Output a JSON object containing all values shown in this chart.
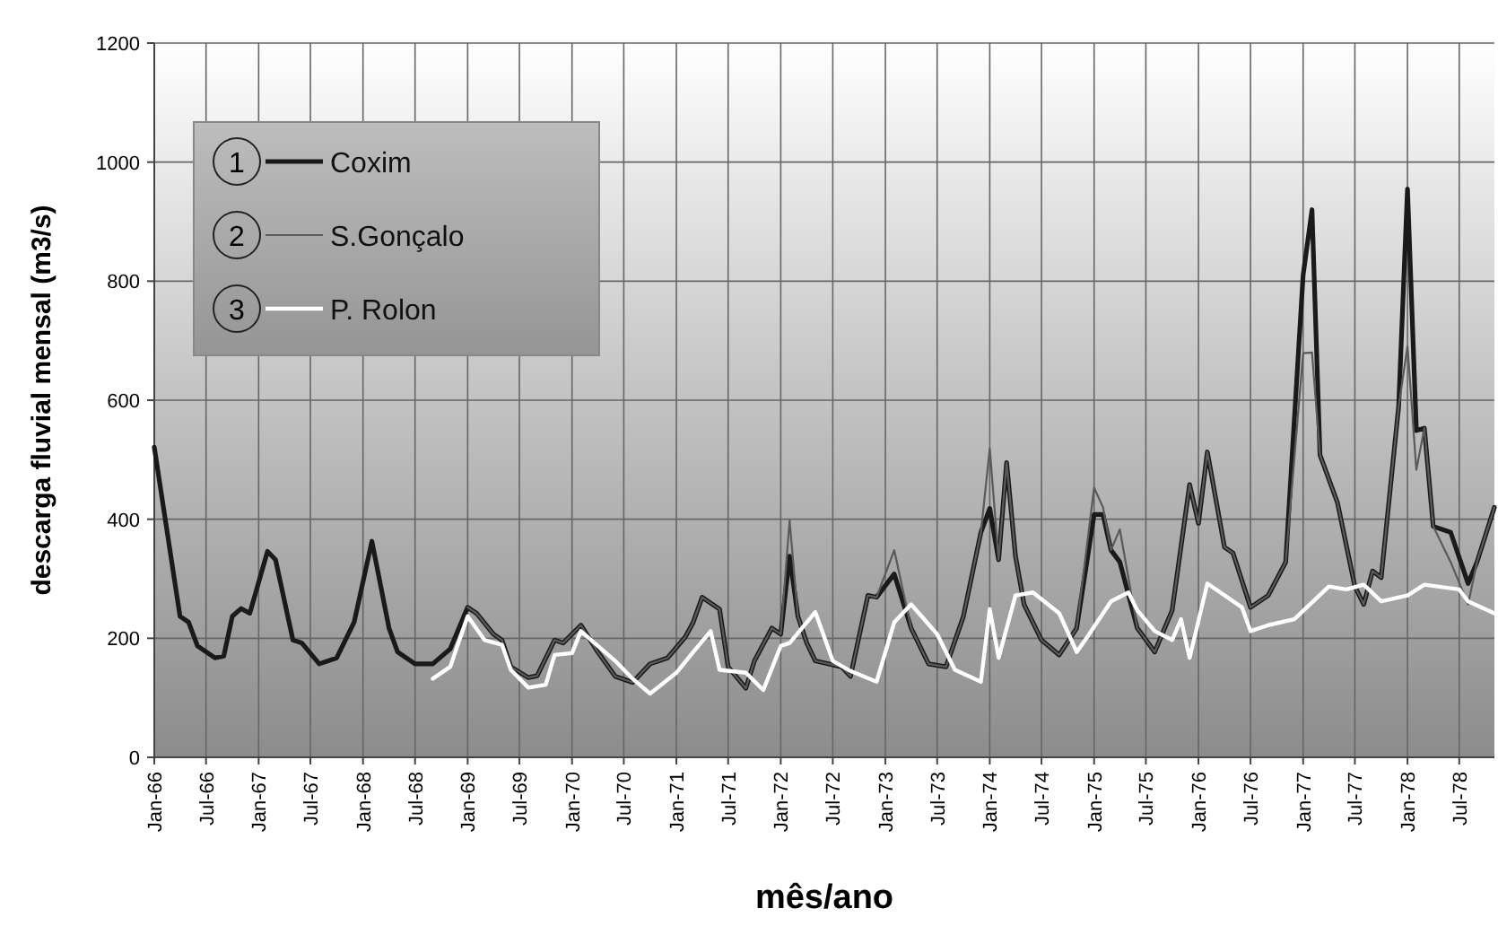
{
  "chart_data": {
    "type": "line",
    "xlabel": "mês/ano",
    "ylabel": "descarga fluvial mensal (m3/s)",
    "xlim": [
      "1966-01",
      "1978-11"
    ],
    "ylim": [
      0,
      1200
    ],
    "yticks": [
      0,
      200,
      400,
      600,
      800,
      1000,
      1200
    ],
    "xticks": [
      {
        "value": "1966-01",
        "label": "Jan-66"
      },
      {
        "value": "1966-07",
        "label": "Jul-66"
      },
      {
        "value": "1967-01",
        "label": "Jan-67"
      },
      {
        "value": "1967-07",
        "label": "Jul-67"
      },
      {
        "value": "1968-01",
        "label": "Jan-68"
      },
      {
        "value": "1968-07",
        "label": "Jul-68"
      },
      {
        "value": "1969-01",
        "label": "Jan-69"
      },
      {
        "value": "1969-07",
        "label": "Jul-69"
      },
      {
        "value": "1970-01",
        "label": "Jan-70"
      },
      {
        "value": "1970-07",
        "label": "Jul-70"
      },
      {
        "value": "1971-01",
        "label": "Jan-71"
      },
      {
        "value": "1971-07",
        "label": "Jul-71"
      },
      {
        "value": "1972-01",
        "label": "Jan-72"
      },
      {
        "value": "1972-07",
        "label": "Jul-72"
      },
      {
        "value": "1973-01",
        "label": "Jan-73"
      },
      {
        "value": "1973-07",
        "label": "Jul-73"
      },
      {
        "value": "1974-01",
        "label": "Jan-74"
      },
      {
        "value": "1974-07",
        "label": "Jul-74"
      },
      {
        "value": "1975-01",
        "label": "Jan-75"
      },
      {
        "value": "1975-07",
        "label": "Jul-75"
      },
      {
        "value": "1976-01",
        "label": "Jan-76"
      },
      {
        "value": "1976-07",
        "label": "Jul-76"
      },
      {
        "value": "1977-01",
        "label": "Jan-77"
      },
      {
        "value": "1977-07",
        "label": "Jul-77"
      },
      {
        "value": "1978-01",
        "label": "Jan-78"
      },
      {
        "value": "1978-07",
        "label": "Jul-78"
      }
    ],
    "grid": true,
    "legend": "top left",
    "line_style": "solid",
    "annotations": [
      "1",
      "2",
      "3"
    ],
    "series": [
      {
        "name": "Coxim",
        "color": "#1a1a1a",
        "x": [
          "1966-01",
          "1966-04",
          "1966-05",
          "1966-06",
          "1966-08",
          "1966-09",
          "1966-10",
          "1966-11",
          "1966-12",
          "1967-02",
          "1967-03",
          "1967-05",
          "1967-06",
          "1967-08",
          "1967-10",
          "1967-12",
          "1968-02",
          "1968-04",
          "1968-05",
          "1968-07",
          "1968-09",
          "1968-11",
          "1969-01",
          "1969-02",
          "1969-04",
          "1969-05",
          "1969-06",
          "1969-08",
          "1969-09",
          "1969-11",
          "1969-12",
          "1970-02",
          "1970-04",
          "1970-06",
          "1970-08",
          "1970-10",
          "1970-12",
          "1971-02",
          "1971-03",
          "1971-04",
          "1971-06",
          "1971-07",
          "1971-09",
          "1971-10",
          "1971-12",
          "1972-01",
          "1972-02",
          "1972-03",
          "1972-04",
          "1972-05",
          "1972-08",
          "1972-09",
          "1972-11",
          "1972-12",
          "1973-02",
          "1973-04",
          "1973-06",
          "1973-08",
          "1973-10",
          "1973-12",
          "1974-01",
          "1974-02",
          "1974-03",
          "1974-04",
          "1974-05",
          "1974-07",
          "1974-09",
          "1974-11",
          "1975-01",
          "1975-02",
          "1975-03",
          "1975-04",
          "1975-06",
          "1975-08",
          "1975-10",
          "1975-12",
          "1976-01",
          "1976-02",
          "1976-04",
          "1976-05",
          "1976-07",
          "1976-09",
          "1976-11",
          "1977-01",
          "1977-02",
          "1977-03",
          "1977-05",
          "1977-07",
          "1977-08",
          "1977-09",
          "1977-10",
          "1977-12",
          "1978-01",
          "1978-02",
          "1978-03",
          "1978-04",
          "1978-06",
          "1978-08",
          "1978-09",
          "1978-11"
        ],
        "values": [
          521,
          237,
          227,
          187,
          167,
          170,
          237,
          250,
          242,
          346,
          332,
          197,
          192,
          157,
          167,
          227,
          363,
          217,
          177,
          157,
          157,
          182,
          252,
          242,
          207,
          197,
          152,
          134,
          137,
          197,
          192,
          222,
          177,
          136,
          126,
          157,
          167,
          202,
          227,
          269,
          249,
          152,
          116,
          162,
          217,
          207,
          338,
          237,
          192,
          162,
          152,
          136,
          272,
          269,
          308,
          217,
          157,
          152,
          237,
          378,
          418,
          332,
          495,
          338,
          257,
          197,
          172,
          217,
          408,
          408,
          348,
          328,
          217,
          177,
          247,
          458,
          393,
          513,
          353,
          343,
          252,
          272,
          328,
          810,
          920,
          508,
          428,
          287,
          257,
          313,
          302,
          589,
          955,
          549,
          553,
          388,
          378,
          292,
          328,
          420
        ]
      },
      {
        "name": "S.Gonçalo",
        "color": "#5a5a5a",
        "x": [
          "1969-01",
          "1969-02",
          "1969-04",
          "1969-05",
          "1969-06",
          "1969-08",
          "1969-09",
          "1969-11",
          "1969-12",
          "1970-02",
          "1970-04",
          "1970-06",
          "1970-08",
          "1970-10",
          "1970-12",
          "1971-02",
          "1971-03",
          "1971-04",
          "1971-06",
          "1971-07",
          "1971-09",
          "1971-10",
          "1971-12",
          "1972-01",
          "1972-02",
          "1972-03",
          "1972-04",
          "1972-05",
          "1972-08",
          "1972-09",
          "1972-11",
          "1972-12",
          "1973-02",
          "1973-04",
          "1973-06",
          "1973-08",
          "1973-10",
          "1973-12",
          "1974-01",
          "1974-02",
          "1974-03",
          "1974-04",
          "1974-05",
          "1974-07",
          "1974-09",
          "1974-11",
          "1975-01",
          "1975-02",
          "1975-03",
          "1975-04",
          "1975-06",
          "1975-08",
          "1975-10",
          "1975-12",
          "1976-01",
          "1976-02",
          "1976-04",
          "1976-05",
          "1976-07",
          "1976-09",
          "1976-11",
          "1977-01",
          "1977-02",
          "1977-03",
          "1977-05",
          "1977-07",
          "1977-08",
          "1977-09",
          "1977-10",
          "1977-12",
          "1978-01",
          "1978-02",
          "1978-03",
          "1978-04",
          "1978-06",
          "1978-08",
          "1978-09",
          "1978-11"
        ],
        "values": [
          252,
          242,
          207,
          197,
          152,
          134,
          137,
          197,
          192,
          222,
          177,
          136,
          126,
          157,
          167,
          202,
          227,
          269,
          249,
          152,
          116,
          162,
          217,
          207,
          398,
          237,
          192,
          162,
          152,
          136,
          272,
          269,
          348,
          217,
          157,
          152,
          237,
          378,
          519,
          332,
          495,
          338,
          257,
          197,
          172,
          217,
          453,
          420,
          348,
          383,
          217,
          177,
          247,
          458,
          393,
          513,
          353,
          343,
          252,
          272,
          328,
          679,
          680,
          508,
          428,
          287,
          257,
          313,
          302,
          589,
          691,
          483,
          553,
          388,
          328,
          257,
          328,
          420
        ]
      },
      {
        "name": "P. Rolon",
        "color": "#ffffff",
        "x": [
          "1968-09",
          "1968-11",
          "1969-01",
          "1969-03",
          "1969-05",
          "1969-06",
          "1969-08",
          "1969-10",
          "1969-11",
          "1970-01",
          "1970-02",
          "1970-06",
          "1970-08",
          "1970-10",
          "1971-01",
          "1971-03",
          "1971-05",
          "1971-06",
          "1971-09",
          "1971-11",
          "1972-01",
          "1972-02",
          "1972-05",
          "1972-07",
          "1972-09",
          "1972-12",
          "1973-02",
          "1973-04",
          "1973-07",
          "1973-09",
          "1973-12",
          "1974-01",
          "1974-02",
          "1974-04",
          "1974-06",
          "1974-09",
          "1974-11",
          "1974-12",
          "1975-03",
          "1975-05",
          "1975-06",
          "1975-08",
          "1975-10",
          "1975-11",
          "1975-12",
          "1976-02",
          "1976-06",
          "1976-07",
          "1976-09",
          "1976-12",
          "1977-04",
          "1977-06",
          "1977-08",
          "1977-10",
          "1978-01",
          "1978-03",
          "1978-07",
          "1978-08",
          "1978-11"
        ],
        "values": [
          132,
          152,
          237,
          197,
          189,
          147,
          117,
          122,
          172,
          175,
          212,
          162,
          132,
          107,
          142,
          177,
          212,
          147,
          142,
          113,
          187,
          192,
          244,
          162,
          145,
          127,
          227,
          257,
          207,
          147,
          127,
          249,
          167,
          272,
          277,
          242,
          177,
          197,
          262,
          277,
          247,
          212,
          197,
          232,
          167,
          292,
          252,
          212,
          222,
          232,
          287,
          282,
          290,
          262,
          272,
          290,
          282,
          262,
          242
        ]
      }
    ]
  }
}
